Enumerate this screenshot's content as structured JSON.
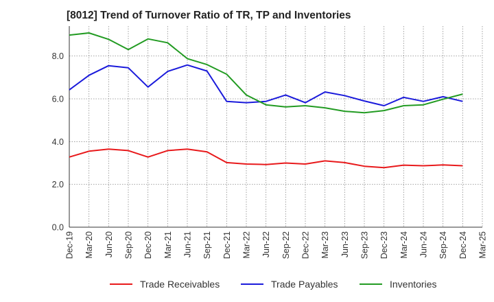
{
  "chart_data": {
    "type": "line",
    "title": "[8012]  Trend of Turnover Ratio of TR, TP and Inventories",
    "xlabel": "",
    "ylabel": "",
    "ylim": [
      0,
      9.4
    ],
    "yticks": [
      "0.0",
      "2.0",
      "4.0",
      "6.0",
      "8.0"
    ],
    "x": [
      "Dec-19",
      "Mar-20",
      "Jun-20",
      "Sep-20",
      "Dec-20",
      "Mar-21",
      "Jun-21",
      "Sep-21",
      "Dec-21",
      "Mar-22",
      "Jun-22",
      "Sep-22",
      "Dec-22",
      "Mar-23",
      "Jun-23",
      "Sep-23",
      "Dec-23",
      "Mar-24",
      "Jun-24",
      "Sep-24",
      "Dec-24",
      "Mar-25"
    ],
    "grid": true,
    "legend_position": "bottom",
    "series": [
      {
        "name": "Trade Receivables",
        "color": "#e8191b",
        "values": [
          3.28,
          3.55,
          3.65,
          3.58,
          3.28,
          3.58,
          3.65,
          3.52,
          3.02,
          2.95,
          2.93,
          3.0,
          2.95,
          3.1,
          3.02,
          2.85,
          2.78,
          2.9,
          2.87,
          2.91,
          2.87,
          null
        ]
      },
      {
        "name": "Trade Payables",
        "color": "#1a1adb",
        "values": [
          6.42,
          7.1,
          7.55,
          7.45,
          6.55,
          7.28,
          7.58,
          7.3,
          5.88,
          5.82,
          5.88,
          6.18,
          5.82,
          6.32,
          6.15,
          5.9,
          5.68,
          6.07,
          5.88,
          6.1,
          5.88,
          null
        ]
      },
      {
        "name": "Inventories",
        "color": "#229b22",
        "values": [
          8.98,
          9.08,
          8.78,
          8.3,
          8.8,
          8.62,
          7.88,
          7.6,
          7.15,
          6.18,
          5.72,
          5.62,
          5.68,
          5.58,
          5.42,
          5.35,
          5.45,
          5.68,
          5.72,
          5.98,
          6.22,
          null
        ]
      }
    ]
  }
}
